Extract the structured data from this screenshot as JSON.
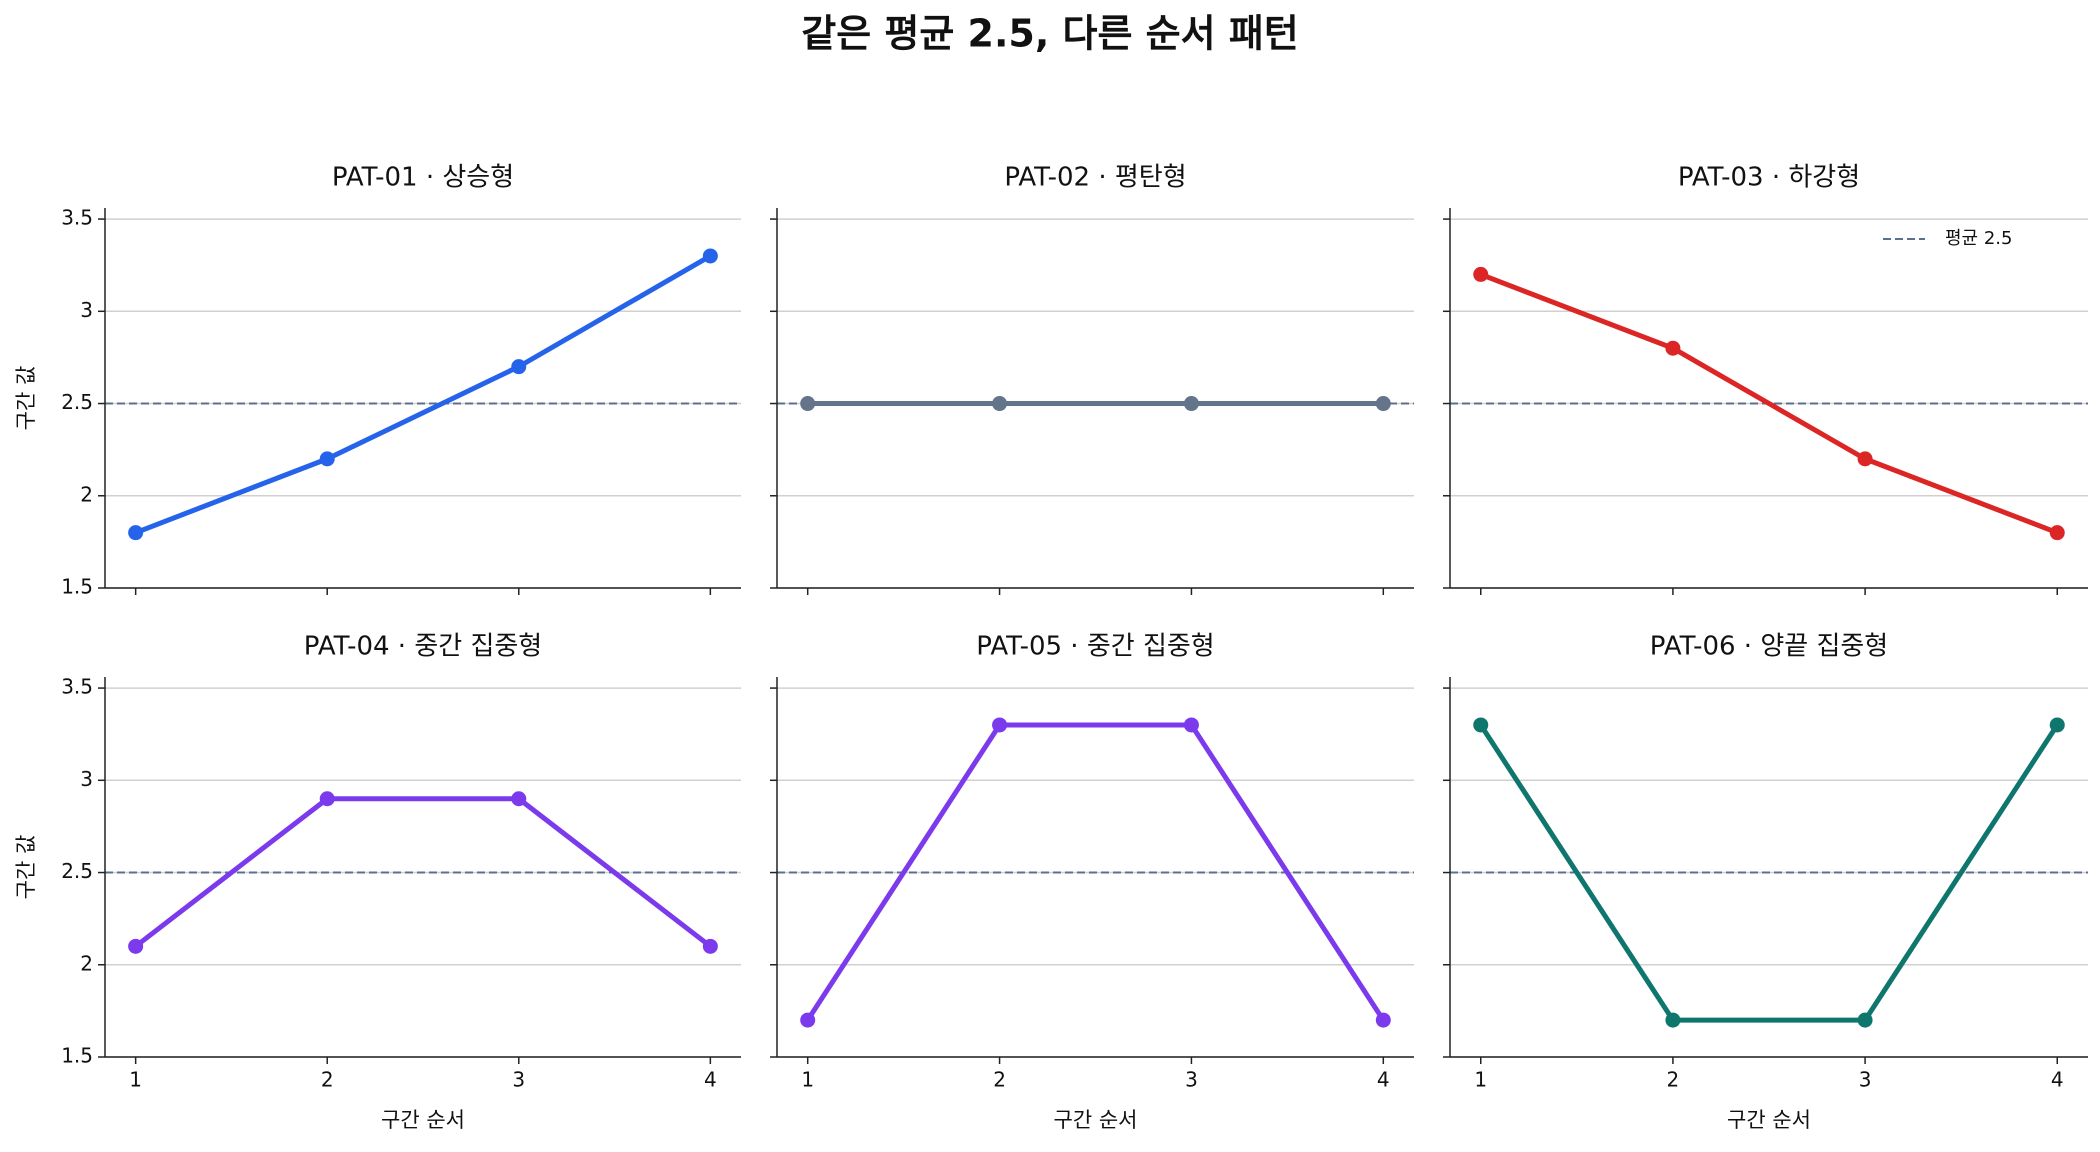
{
  "title": "같은 평균 2.5, 다른 순서 패턴",
  "chart_data": [
    {
      "type": "line",
      "title": "PAT-01 · 상승형",
      "ylabel": "구간 값",
      "x": [
        1,
        2,
        3,
        4
      ],
      "series": [
        {
          "color": "#2563eb",
          "values": [
            1.8,
            2.2,
            2.7,
            3.3
          ]
        }
      ],
      "hline": 2.5,
      "hline_color": "#5b6f90",
      "xlim": [
        0.84,
        4.16
      ],
      "ylim": [
        1.5,
        3.56
      ],
      "xticks": [
        1,
        2,
        3,
        4
      ],
      "yticks": [
        1.5,
        2.0,
        2.5,
        3.0,
        3.5
      ],
      "show_xticklabels": false,
      "show_yticklabels": true,
      "grid": true
    },
    {
      "type": "line",
      "title": "PAT-02 · 평탄형",
      "x": [
        1,
        2,
        3,
        4
      ],
      "series": [
        {
          "color": "#64748b",
          "values": [
            2.5,
            2.5,
            2.5,
            2.5
          ]
        }
      ],
      "hline": 2.5,
      "hline_color": "#5b6f90",
      "xlim": [
        0.84,
        4.16
      ],
      "ylim": [
        1.5,
        3.56
      ],
      "xticks": [
        1,
        2,
        3,
        4
      ],
      "yticks": [
        1.5,
        2.0,
        2.5,
        3.0,
        3.5
      ],
      "show_xticklabels": false,
      "show_yticklabels": false,
      "grid": true
    },
    {
      "type": "line",
      "title": "PAT-03 · 하강형",
      "x": [
        1,
        2,
        3,
        4
      ],
      "series": [
        {
          "color": "#dc2626",
          "values": [
            3.2,
            2.8,
            2.2,
            1.8
          ]
        }
      ],
      "hline": 2.5,
      "hline_label": "평균 2.5",
      "legend": "upper right",
      "hline_color": "#5b6f90",
      "xlim": [
        0.84,
        4.16
      ],
      "ylim": [
        1.5,
        3.56
      ],
      "xticks": [
        1,
        2,
        3,
        4
      ],
      "yticks": [
        1.5,
        2.0,
        2.5,
        3.0,
        3.5
      ],
      "show_xticklabels": false,
      "show_yticklabels": false,
      "grid": true
    },
    {
      "type": "line",
      "title": "PAT-04 · 중간 집중형",
      "ylabel": "구간 값",
      "xlabel": "구간 순서",
      "x": [
        1,
        2,
        3,
        4
      ],
      "series": [
        {
          "color": "#7c3aed",
          "values": [
            2.1,
            2.9,
            2.9,
            2.1
          ]
        }
      ],
      "hline": 2.5,
      "hline_color": "#5b6f90",
      "xlim": [
        0.84,
        4.16
      ],
      "ylim": [
        1.5,
        3.56
      ],
      "xticks": [
        1,
        2,
        3,
        4
      ],
      "yticks": [
        1.5,
        2.0,
        2.5,
        3.0,
        3.5
      ],
      "show_xticklabels": true,
      "show_yticklabels": true,
      "grid": true
    },
    {
      "type": "line",
      "title": "PAT-05 · 중간 집중형",
      "xlabel": "구간 순서",
      "x": [
        1,
        2,
        3,
        4
      ],
      "series": [
        {
          "color": "#7c3aed",
          "values": [
            1.7,
            3.3,
            3.3,
            1.7
          ]
        }
      ],
      "hline": 2.5,
      "hline_color": "#5b6f90",
      "xlim": [
        0.84,
        4.16
      ],
      "ylim": [
        1.5,
        3.56
      ],
      "xticks": [
        1,
        2,
        3,
        4
      ],
      "yticks": [
        1.5,
        2.0,
        2.5,
        3.0,
        3.5
      ],
      "show_xticklabels": true,
      "show_yticklabels": false,
      "grid": true
    },
    {
      "type": "line",
      "title": "PAT-06 · 양끝 집중형",
      "xlabel": "구간 순서",
      "x": [
        1,
        2,
        3,
        4
      ],
      "series": [
        {
          "color": "#0f766e",
          "values": [
            3.3,
            1.7,
            1.7,
            3.3
          ]
        }
      ],
      "hline": 2.5,
      "hline_color": "#5b6f90",
      "xlim": [
        0.84,
        4.16
      ],
      "ylim": [
        1.5,
        3.56
      ],
      "xticks": [
        1,
        2,
        3,
        4
      ],
      "yticks": [
        1.5,
        2.0,
        2.5,
        3.0,
        3.5
      ],
      "show_xticklabels": true,
      "show_yticklabels": false,
      "grid": true
    }
  ]
}
